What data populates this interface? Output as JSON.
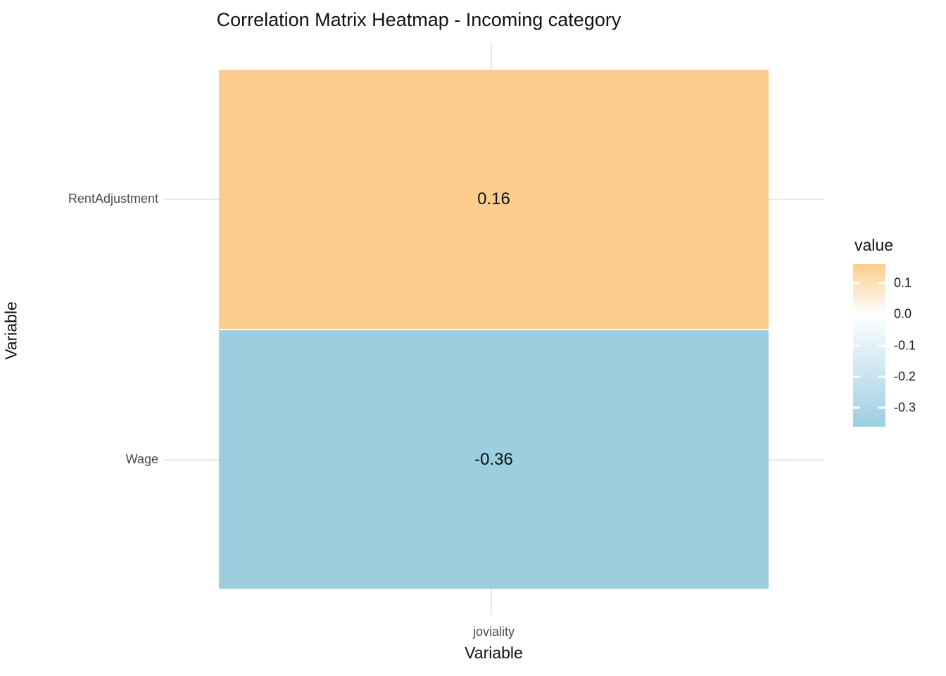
{
  "chart_data": {
    "type": "heatmap",
    "title": "Correlation Matrix Heatmap - Incoming category",
    "xlabel": "Variable",
    "ylabel": "Variable",
    "x_categories": [
      "joviality"
    ],
    "y_categories": [
      "RentAdjustment",
      "Wage"
    ],
    "cells": [
      {
        "row": "RentAdjustment",
        "col": "joviality",
        "value": 0.16,
        "label": "0.16",
        "color": "#FCCD8C"
      },
      {
        "row": "Wage",
        "col": "joviality",
        "value": -0.36,
        "label": "-0.36",
        "color": "#9DCEE0"
      }
    ],
    "legend": {
      "title": "value",
      "position": "right",
      "bar_max": 0.16,
      "bar_min": -0.36,
      "tick_values": [
        0.1,
        0.0,
        -0.1,
        -0.2,
        -0.3
      ],
      "tick_labels": [
        "0.1",
        "0.0",
        "-0.1",
        "-0.2",
        "-0.3"
      ]
    },
    "colors": {
      "positive_cell": "#FCCD8C",
      "negative_cell": "#9DCEE0",
      "zero_color": "#FFFFFF",
      "gridline": "#E8E8E8",
      "axis_text": "#4D4D4D",
      "title_text": "#111111"
    },
    "grid": true,
    "layout": "one-column heatmap (2 rows x 1 col), panel grid visible outside tiles, vertical colorbar legend on right"
  }
}
